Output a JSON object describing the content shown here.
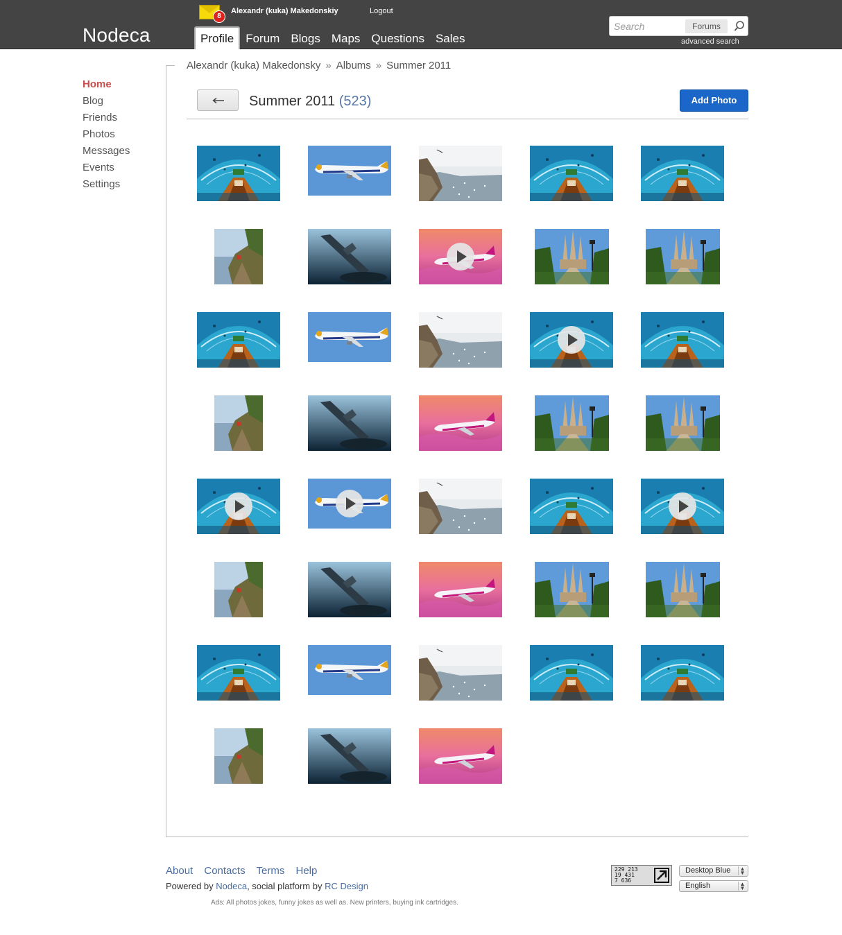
{
  "header": {
    "logo": "Nodeca",
    "mail_count": "8",
    "username": "Alexandr (kuka) Makedonskiy",
    "logout": "Logout",
    "nav": [
      "Profile",
      "Forum",
      "Blogs",
      "Maps",
      "Questions",
      "Sales"
    ],
    "active_tab": "Profile",
    "search_placeholder": "Search",
    "search_scope": "Forums",
    "advanced_search": "advanced search"
  },
  "sidebar": {
    "items": [
      "Home",
      "Blog",
      "Friends",
      "Photos",
      "Messages",
      "Events",
      "Settings"
    ],
    "active": "Home"
  },
  "breadcrumb": [
    "Alexandr (kuka) Makedonsky",
    "Albums",
    "Summer 2011"
  ],
  "album": {
    "title": "Summer 2011",
    "count": "(523)",
    "add_photo": "Add Photo"
  },
  "photos": [
    {
      "kind": "aquarium",
      "video": false
    },
    {
      "kind": "airplane-blue",
      "video": false
    },
    {
      "kind": "coast",
      "video": false
    },
    {
      "kind": "aquarium",
      "video": false
    },
    {
      "kind": "aquarium",
      "video": false
    },
    {
      "kind": "cliff",
      "video": false
    },
    {
      "kind": "wreck",
      "video": false
    },
    {
      "kind": "airplane-pink",
      "video": true
    },
    {
      "kind": "cathedral",
      "video": false
    },
    {
      "kind": "cathedral",
      "video": false
    },
    {
      "kind": "aquarium",
      "video": false
    },
    {
      "kind": "airplane-blue",
      "video": false
    },
    {
      "kind": "coast",
      "video": false
    },
    {
      "kind": "aquarium",
      "video": true
    },
    {
      "kind": "aquarium",
      "video": false
    },
    {
      "kind": "cliff",
      "video": false
    },
    {
      "kind": "wreck",
      "video": false
    },
    {
      "kind": "airplane-pink",
      "video": false
    },
    {
      "kind": "cathedral",
      "video": false
    },
    {
      "kind": "cathedral",
      "video": false
    },
    {
      "kind": "aquarium",
      "video": true
    },
    {
      "kind": "airplane-blue",
      "video": true
    },
    {
      "kind": "coast",
      "video": false
    },
    {
      "kind": "aquarium",
      "video": false
    },
    {
      "kind": "aquarium",
      "video": true
    },
    {
      "kind": "cliff",
      "video": false
    },
    {
      "kind": "wreck",
      "video": false
    },
    {
      "kind": "airplane-pink",
      "video": false
    },
    {
      "kind": "cathedral",
      "video": false
    },
    {
      "kind": "cathedral",
      "video": false
    },
    {
      "kind": "aquarium",
      "video": false
    },
    {
      "kind": "airplane-blue",
      "video": false
    },
    {
      "kind": "coast",
      "video": false
    },
    {
      "kind": "aquarium",
      "video": false
    },
    {
      "kind": "aquarium",
      "video": false
    },
    {
      "kind": "cliff",
      "video": false
    },
    {
      "kind": "wreck",
      "video": false
    },
    {
      "kind": "airplane-pink",
      "video": false
    }
  ],
  "footer": {
    "links": [
      "About",
      "Contacts",
      "Terms",
      "Help"
    ],
    "powered_prefix": "Powered by ",
    "powered_link": "Nodeca",
    "powered_mid": ", social platform by ",
    "design_link": "RC Design",
    "ads": "Ads: All photos jokes, funny jokes as well as. New printers, buying ink cartridges.",
    "counter_lines": [
      "229 213",
      "19 431",
      "7 636"
    ],
    "theme": "Desktop Blue",
    "language": "English"
  },
  "colors": {
    "header_bg": "#444444",
    "accent_home": "#c94c4c",
    "button_blue": "#1a66c9",
    "link_blue": "#4a6da0"
  }
}
